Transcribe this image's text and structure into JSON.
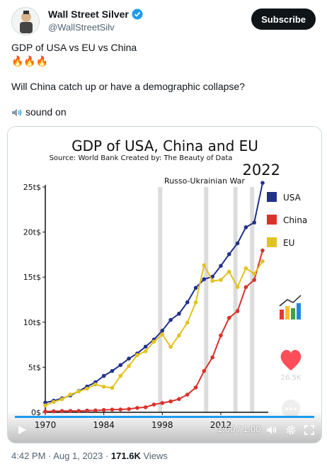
{
  "header": {
    "display_name": "Wall Street Silver",
    "handle": "@WallStreetSilv",
    "subscribe_label": "Subscribe"
  },
  "tweet": {
    "line1": "GDP of USA vs EU vs China",
    "line2": "🔥🔥🔥",
    "line3": "Will China catch up or have a demographic collapse?",
    "sound_label": "sound on"
  },
  "chart_data": {
    "type": "line",
    "title": "GDP  of USA, China and EU",
    "subtitle": "Source: World Bank    Created by: The Beauty of Data",
    "year_label": "2022",
    "annotation": "Russo-Ukrainian War",
    "xlim": [
      1970,
      2022
    ],
    "ylim": [
      0,
      25
    ],
    "x_ticks": [
      "1970",
      "1984",
      "1998",
      "2012"
    ],
    "y_ticks": [
      "0$",
      "5t$",
      "10t$",
      "15t$",
      "20t$",
      "25t$"
    ],
    "shaded_years": [
      [
        1997,
        1998
      ],
      [
        2008,
        2009
      ],
      [
        2015,
        2016
      ],
      [
        2019,
        2020
      ]
    ],
    "legend": [
      "USA",
      "China",
      "EU"
    ],
    "x": [
      1970,
      1972,
      1974,
      1976,
      1978,
      1980,
      1982,
      1984,
      1986,
      1988,
      1990,
      1992,
      1994,
      1996,
      1998,
      2000,
      2002,
      2004,
      2006,
      2008,
      2010,
      2012,
      2014,
      2016,
      2018,
      2020,
      2022
    ],
    "series": [
      {
        "name": "USA",
        "color": "#22318a",
        "values": [
          1.07,
          1.28,
          1.55,
          1.87,
          2.35,
          2.86,
          3.34,
          4.04,
          4.59,
          5.24,
          5.96,
          6.52,
          7.29,
          8.07,
          9.06,
          10.25,
          10.94,
          12.21,
          13.81,
          14.77,
          15.05,
          16.25,
          17.55,
          18.75,
          20.53,
          21.06,
          25.46
        ]
      },
      {
        "name": "China",
        "color": "#d8322c",
        "values": [
          0.09,
          0.11,
          0.14,
          0.15,
          0.15,
          0.19,
          0.21,
          0.26,
          0.3,
          0.31,
          0.36,
          0.49,
          0.56,
          0.86,
          1.03,
          1.21,
          1.47,
          1.96,
          2.75,
          4.59,
          6.09,
          8.53,
          10.48,
          11.23,
          13.89,
          14.69,
          17.96
        ]
      },
      {
        "name": "EU",
        "color": "#e2c21f",
        "values": [
          0.76,
          1.15,
          1.45,
          1.97,
          2.32,
          2.62,
          3.09,
          2.84,
          2.71,
          4.04,
          5.13,
          6.35,
          6.78,
          7.84,
          8.64,
          7.26,
          8.53,
          9.95,
          12.2,
          16.32,
          14.58,
          14.69,
          15.6,
          13.91,
          15.98,
          15.37,
          16.75
        ]
      }
    ],
    "likes": "26.5K"
  },
  "player": {
    "time": "1:00 / 1:00",
    "progress": 1.0
  },
  "footer": {
    "time": "4:42 PM · Aug 1, 2023 · ",
    "views_count": "171.6K",
    "views_label": " Views"
  }
}
